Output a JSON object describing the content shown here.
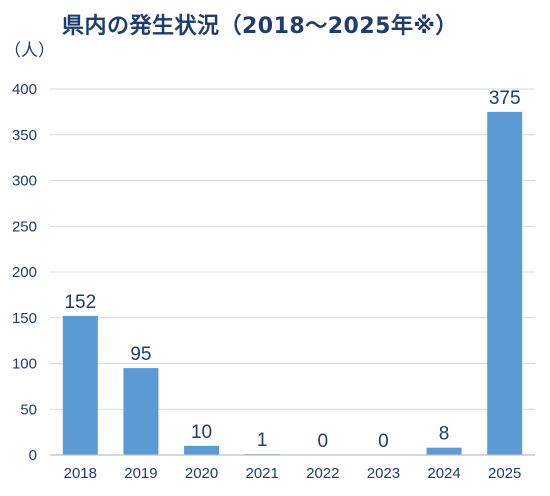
{
  "title": "県内の発生状況（2018～2025年※）",
  "unit_label": "（人）",
  "colors": {
    "bar": "#5b9bd5",
    "text": "#1f3c6e",
    "grid": "#d9d9d9",
    "axis": "#bfbfbf"
  },
  "chart_data": {
    "type": "bar",
    "title": "県内の発生状況（2018～2025年※）",
    "ylabel": "（人）",
    "xlabel": "",
    "categories": [
      "2018",
      "2019",
      "2020",
      "2021",
      "2022",
      "2023",
      "2024",
      "2025"
    ],
    "values": [
      152,
      95,
      10,
      1,
      0,
      0,
      8,
      375
    ],
    "ylim": [
      0,
      400
    ],
    "yticks": [
      0,
      50,
      100,
      150,
      200,
      250,
      300,
      350,
      400
    ],
    "grid": true,
    "legend": "none",
    "data_labels": true
  }
}
